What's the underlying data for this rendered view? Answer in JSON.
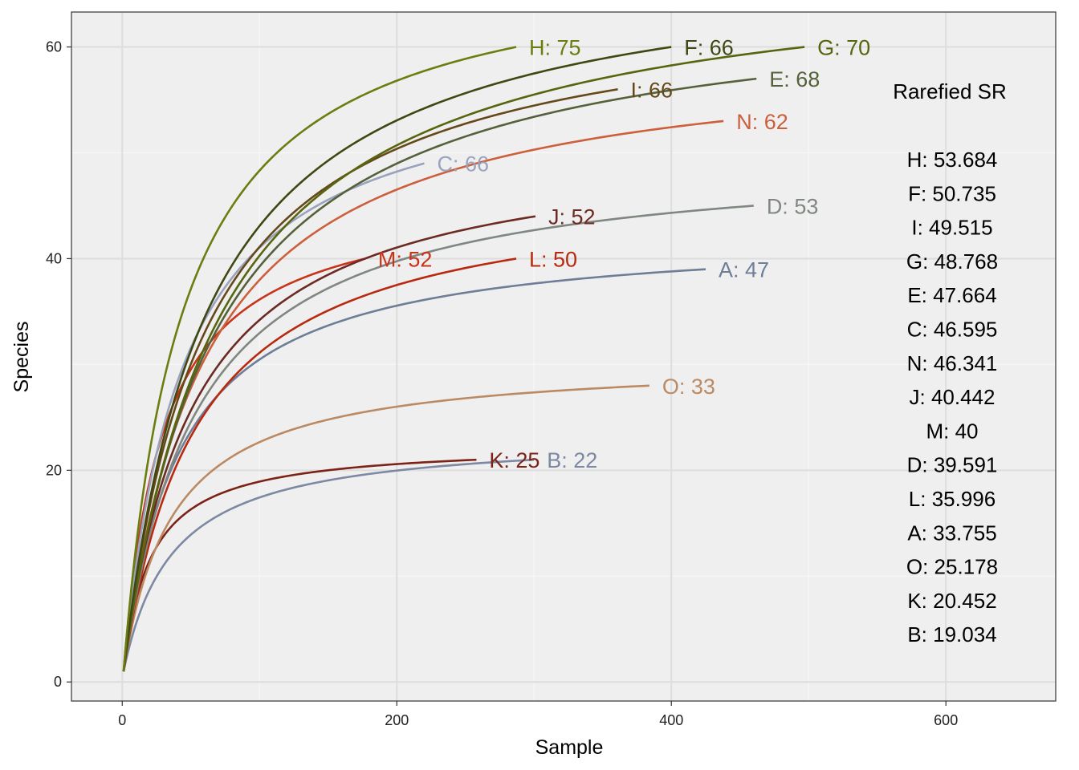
{
  "chart_data": {
    "type": "line",
    "title": "",
    "xlabel": "Sample",
    "ylabel": "Species",
    "xlim": [
      -37,
      680
    ],
    "ylim": [
      -1.8,
      63.3
    ],
    "x_ticks": [
      0,
      200,
      400,
      600
    ],
    "y_ticks": [
      0,
      20,
      40,
      60
    ],
    "x_tick_labels": [
      "0",
      "200",
      "400",
      "600"
    ],
    "y_tick_labels": [
      "0",
      "20",
      "40",
      "60"
    ],
    "grid": true,
    "background": "#efefef",
    "series": [
      {
        "id": "H",
        "label": "H: 75",
        "color": "#6b7d10",
        "n_max": 287,
        "s_max": 60,
        "half": 42
      },
      {
        "id": "F",
        "label": "F: 66",
        "color": "#3f4812",
        "n_max": 400,
        "s_max": 60,
        "half": 60
      },
      {
        "id": "G",
        "label": "G: 70",
        "color": "#56650e",
        "n_max": 497,
        "s_max": 60,
        "half": 70
      },
      {
        "id": "E",
        "label": "E: 68",
        "color": "#55613a",
        "n_max": 462,
        "s_max": 57,
        "half": 66
      },
      {
        "id": "I",
        "label": "I: 66",
        "color": "#66491a",
        "n_max": 361,
        "s_max": 56,
        "half": 58
      },
      {
        "id": "N",
        "label": "N: 62",
        "color": "#cc5f3c",
        "n_max": 438,
        "s_max": 53,
        "half": 58
      },
      {
        "id": "C",
        "label": "C: 66",
        "color": "#9aa3be",
        "n_max": 220,
        "s_max": 49,
        "half": 42
      },
      {
        "id": "J",
        "label": "J: 52",
        "color": "#6c2a23",
        "n_max": 301,
        "s_max": 44,
        "half": 50
      },
      {
        "id": "D",
        "label": "D: 53",
        "color": "#808780",
        "n_max": 460,
        "s_max": 45,
        "half": 52
      },
      {
        "id": "M",
        "label": "M: 52",
        "color": "#c8341a",
        "n_max": 177,
        "s_max": 40,
        "half": 28
      },
      {
        "id": "L",
        "label": "L: 50",
        "color": "#b82a10",
        "n_max": 287,
        "s_max": 40,
        "half": 52
      },
      {
        "id": "A",
        "label": "A: 47",
        "color": "#6e7e96",
        "n_max": 425,
        "s_max": 39,
        "half": 40
      },
      {
        "id": "O",
        "label": "O: 33",
        "color": "#bb8a63",
        "n_max": 384,
        "s_max": 28,
        "half": 35
      },
      {
        "id": "K",
        "label": "K: 25",
        "color": "#7d2216",
        "n_max": 258,
        "s_max": 21,
        "half": 19
      },
      {
        "id": "B",
        "label": "B: 22",
        "color": "#7d88a2",
        "n_max": 300,
        "s_max": 21,
        "half": 35
      }
    ],
    "legend": {
      "title": "Rarefied SR",
      "placement": "right",
      "entries": [
        "H: 53.684",
        "F: 50.735",
        "I: 49.515",
        "G: 48.768",
        "E: 47.664",
        "C: 46.595",
        "N: 46.341",
        "J: 40.442",
        "M: 40",
        "D: 39.591",
        "L: 35.996",
        "A: 33.755",
        "O: 25.178",
        "K: 20.452",
        "B: 19.034"
      ]
    }
  }
}
